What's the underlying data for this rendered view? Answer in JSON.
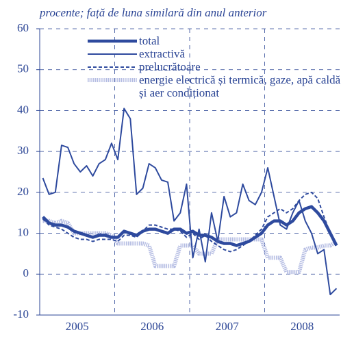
{
  "chart_data": {
    "type": "line",
    "subtitle": "procente; față de luna similară din anul anterior",
    "x_labels": [
      "2005",
      "2006",
      "2007",
      "2008"
    ],
    "ylim": [
      -10,
      60
    ],
    "yticks": [
      -10,
      0,
      10,
      20,
      30,
      40,
      50,
      60
    ],
    "grid": true,
    "series": [
      {
        "name": "total",
        "color": "#2e4a9e",
        "style": "thick",
        "values": [
          14,
          12.5,
          12,
          12,
          11.5,
          10.5,
          10,
          9.5,
          9,
          9.5,
          9.5,
          9,
          9,
          10.5,
          10,
          9.5,
          10.5,
          11,
          11,
          10.5,
          10,
          11,
          11,
          10,
          10.5,
          9.5,
          9.5,
          9,
          8,
          7.5,
          7.5,
          7,
          7.5,
          8,
          9,
          10,
          12,
          13,
          13,
          12,
          13,
          15,
          16,
          16.5,
          15,
          13,
          10,
          7
        ]
      },
      {
        "name": "extractivă",
        "color": "#2e4a9e",
        "style": "solid",
        "values": [
          23.5,
          19.5,
          20,
          31.5,
          31,
          27,
          25,
          26.5,
          24,
          27,
          28,
          32,
          28,
          40.5,
          38,
          19.5,
          21,
          27,
          26,
          23,
          22.5,
          13,
          15,
          22,
          4,
          11,
          3,
          15,
          8,
          19,
          14,
          15,
          22,
          18,
          17,
          20,
          26,
          19,
          12,
          11,
          15,
          18,
          13,
          10,
          5,
          6,
          -5,
          -3.5
        ]
      },
      {
        "name": "prelucrătoare",
        "color": "#2e4a9e",
        "style": "dashed",
        "values": [
          13.5,
          12,
          11.5,
          11,
          10,
          9,
          8.5,
          8.5,
          8,
          8.5,
          8.5,
          8.5,
          8,
          9.5,
          9.5,
          9,
          10.5,
          12,
          12,
          11.5,
          11,
          11,
          10.5,
          9,
          10,
          8.5,
          9.5,
          8,
          7,
          6,
          5.5,
          6,
          7,
          8,
          9.5,
          11,
          14,
          15,
          16,
          15,
          16,
          18,
          19.5,
          20,
          18.5,
          14,
          10,
          7
        ]
      },
      {
        "name": "energie electrică și termică, gaze, apă caldă și aer condiționat",
        "color": "#b3bbe2",
        "style": "wide",
        "values": [
          13,
          13,
          12.5,
          13,
          12.5,
          10,
          10,
          10,
          10,
          10,
          10,
          9.5,
          7.5,
          7.5,
          7.5,
          7.5,
          7.5,
          7,
          2,
          2,
          2,
          2,
          7,
          7,
          7,
          5,
          5,
          5,
          8.5,
          8.5,
          8.5,
          8.5,
          8.5,
          8.5,
          8.5,
          8.5,
          4,
          4,
          4,
          0.5,
          0.5,
          0.5,
          6,
          6.5,
          6.5,
          7,
          7,
          8
        ]
      }
    ]
  }
}
